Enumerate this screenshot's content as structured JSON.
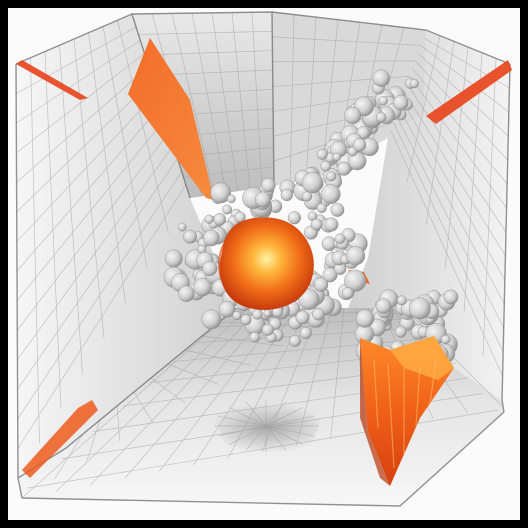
{
  "scene": {
    "subject": "cube-interior-explosion",
    "colors": {
      "background": "#000000",
      "canvas": "#fbfbfb",
      "wall_light": "#f1f1f1",
      "wall_mid": "#dedede",
      "wall_dark": "#c8c8c8",
      "grid_line": "#9a9a9a",
      "fire_core": "#ffd24a",
      "fire_mid": "#ff7a1a",
      "fire_edge": "#d8410f",
      "smoke_light": "#e7e7e7",
      "smoke_dark": "#9c9c9c"
    }
  }
}
